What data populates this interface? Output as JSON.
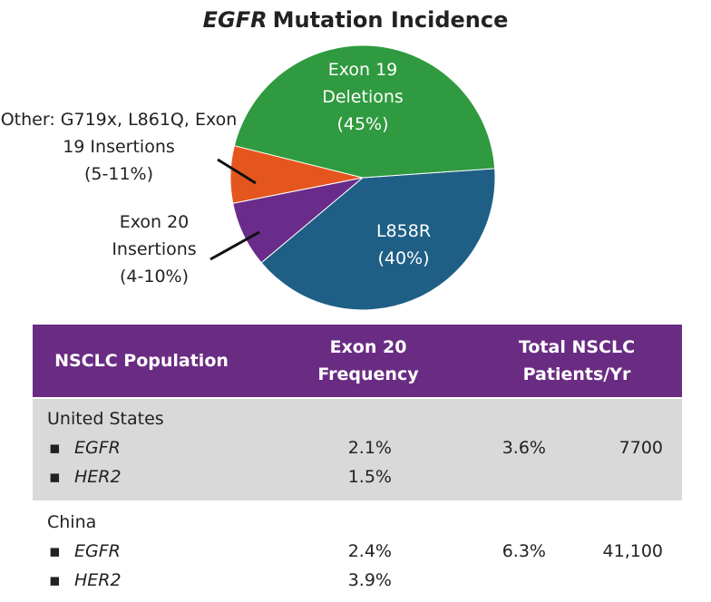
{
  "chart_data": {
    "type": "pie",
    "title_gene": "EGFR",
    "title": "Mutation Incidence",
    "categories": [
      "Exon 19 Deletions",
      "L858R",
      "Exon 20 Insertions",
      "Other: G719x, L861Q, Exon 19 Insertions"
    ],
    "values": [
      45,
      40,
      8,
      7
    ],
    "value_labels": [
      "(45%)",
      "(40%)",
      "(4-10%)",
      "(5-11%)"
    ],
    "colors": [
      "#2f9a3f",
      "#1f5f86",
      "#6a2c8a",
      "#e5561f"
    ]
  },
  "table": {
    "headers": [
      "NSCLC Population",
      "Exon 20 Frequency",
      "Total NSCLC Patients/Yr"
    ],
    "groups": [
      {
        "name": "United States",
        "rows": [
          {
            "gene": "EGFR",
            "frequency": "2.1%"
          },
          {
            "gene": "HER2",
            "frequency": "1.5%"
          }
        ],
        "total_frequency": "3.6%",
        "patients": "7700"
      },
      {
        "name": "China",
        "rows": [
          {
            "gene": "EGFR",
            "frequency": "2.4%"
          },
          {
            "gene": "HER2",
            "frequency": "3.9%"
          }
        ],
        "total_frequency": "6.3%",
        "patients": "41,100"
      }
    ]
  }
}
